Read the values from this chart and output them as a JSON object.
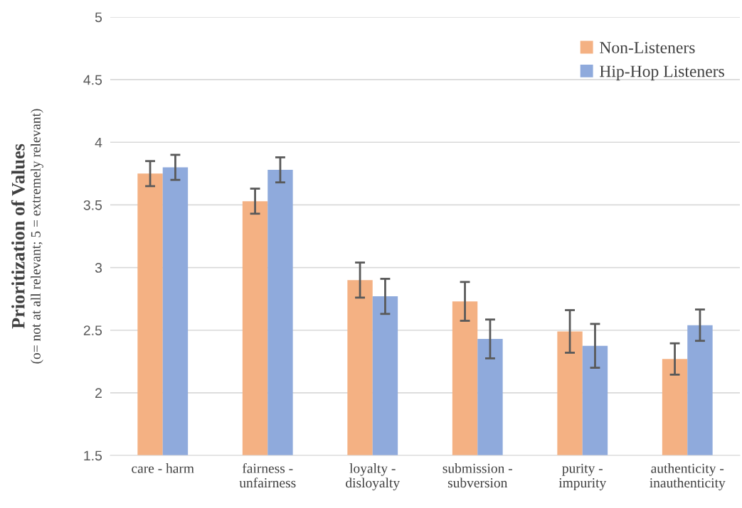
{
  "chart_data": {
    "type": "bar",
    "ylabel": "Prioritization of Values\n(o= not at all relevant; 5 = extremely relevant)",
    "categories": [
      "care - harm",
      "fairness -\nunfairness",
      "loyalty -\ndisloyalty",
      "submission -\nsubversion",
      "purity -\nimpurity",
      "authenticity -\ninauthenticity"
    ],
    "series": [
      {
        "name": "Non-Listeners",
        "color": "#f4b183",
        "values": [
          3.75,
          3.53,
          2.9,
          2.73,
          2.49,
          2.27
        ],
        "errors": [
          0.1,
          0.1,
          0.14,
          0.155,
          0.17,
          0.125
        ]
      },
      {
        "name": "Hip-Hop Listeners",
        "color": "#8faadc",
        "values": [
          3.8,
          3.78,
          2.77,
          2.43,
          2.375,
          2.54
        ],
        "errors": [
          0.1,
          0.1,
          0.14,
          0.155,
          0.175,
          0.125
        ]
      }
    ],
    "ylim": [
      1.5,
      5
    ],
    "yticks": [
      1.5,
      2,
      2.5,
      3,
      3.5,
      4,
      4.5,
      5
    ],
    "grid": "y",
    "legend": "right"
  }
}
